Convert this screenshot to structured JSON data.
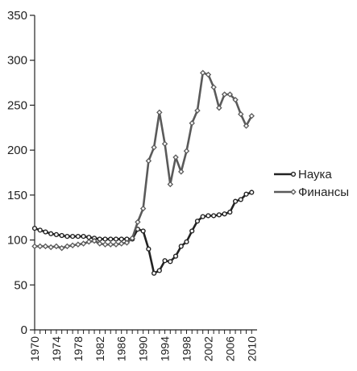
{
  "chart_data": {
    "type": "line",
    "title": "",
    "xlabel": "",
    "ylabel": "",
    "xlim": [
      1970,
      2011
    ],
    "ylim": [
      0,
      350
    ],
    "yticks": [
      0,
      50,
      100,
      150,
      200,
      250,
      300,
      350
    ],
    "xticks": [
      1970,
      1974,
      1978,
      1982,
      1986,
      1990,
      1994,
      1998,
      2002,
      2006,
      2010
    ],
    "grid": false,
    "legend_position": "right",
    "x": [
      1970,
      1971,
      1972,
      1973,
      1974,
      1975,
      1976,
      1977,
      1978,
      1979,
      1980,
      1981,
      1982,
      1983,
      1984,
      1985,
      1986,
      1987,
      1988,
      1989,
      1990,
      1991,
      1992,
      1993,
      1994,
      1995,
      1996,
      1997,
      1998,
      1999,
      2000,
      2001,
      2002,
      2003,
      2004,
      2005,
      2006,
      2007,
      2008,
      2009,
      2010
    ],
    "series": [
      {
        "name": "Наука",
        "color": "#222222",
        "values": [
          113,
          111,
          109,
          107,
          106,
          105,
          104,
          104,
          104,
          104,
          103,
          102,
          101,
          101,
          101,
          101,
          101,
          101,
          101,
          112,
          110,
          90,
          63,
          66,
          77,
          76,
          82,
          93,
          98,
          110,
          121,
          126,
          127,
          127,
          128,
          129,
          131,
          143,
          145,
          151,
          153
        ]
      },
      {
        "name": "Финансы",
        "color": "#5a5a5a",
        "values": [
          93,
          93,
          93,
          92,
          93,
          91,
          93,
          94,
          95,
          96,
          98,
          99,
          96,
          95,
          95,
          95,
          96,
          97,
          102,
          120,
          135,
          188,
          203,
          242,
          207,
          162,
          192,
          176,
          199,
          230,
          244,
          286,
          284,
          270,
          247,
          262,
          262,
          256,
          240,
          227,
          238
        ]
      }
    ]
  }
}
